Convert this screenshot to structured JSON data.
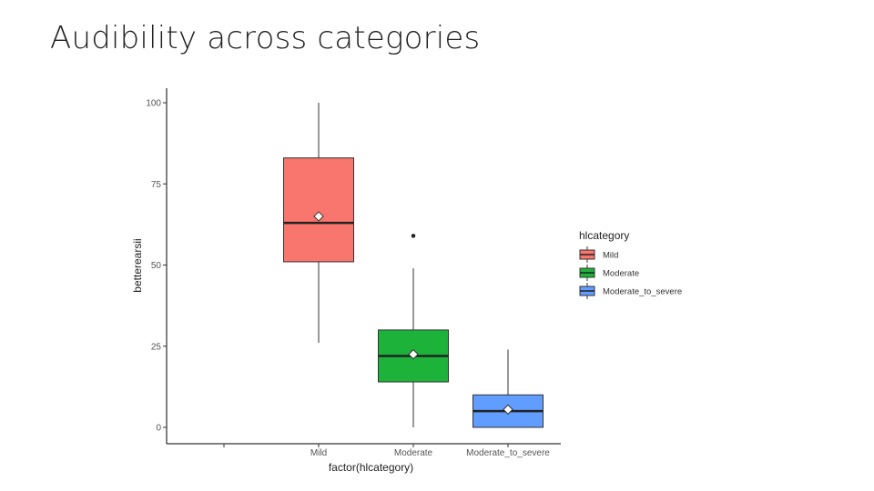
{
  "slide": {
    "title": "Audibility across categories"
  },
  "chart_data": {
    "type": "boxplot",
    "xlabel": "factor(hlcategory)",
    "ylabel": "betterearsii",
    "ylim": [
      0,
      100
    ],
    "yticks": [
      0,
      25,
      50,
      75,
      100
    ],
    "categories": [
      "",
      "Mild",
      "Moderate",
      "Moderate_to_severe"
    ],
    "legend": {
      "title": "hlcategory",
      "placement": "right"
    },
    "grid": false,
    "series": [
      {
        "name": "Mild",
        "category": "Mild",
        "color": "#F8766D",
        "min": 26,
        "q1": 51,
        "median": 63,
        "q3": 83,
        "max": 100,
        "mean": 65,
        "outliers": []
      },
      {
        "name": "Moderate",
        "category": "Moderate",
        "color": "#1DB33B",
        "min": 0,
        "q1": 14,
        "median": 22,
        "q3": 30,
        "max": 49,
        "mean": 22.5,
        "outliers": [
          59
        ]
      },
      {
        "name": "Moderate_to_severe",
        "category": "Moderate_to_severe",
        "color": "#619CFF",
        "min": 0,
        "q1": 0,
        "median": 5,
        "q3": 10,
        "max": 24,
        "mean": 5.5,
        "outliers": []
      }
    ]
  }
}
